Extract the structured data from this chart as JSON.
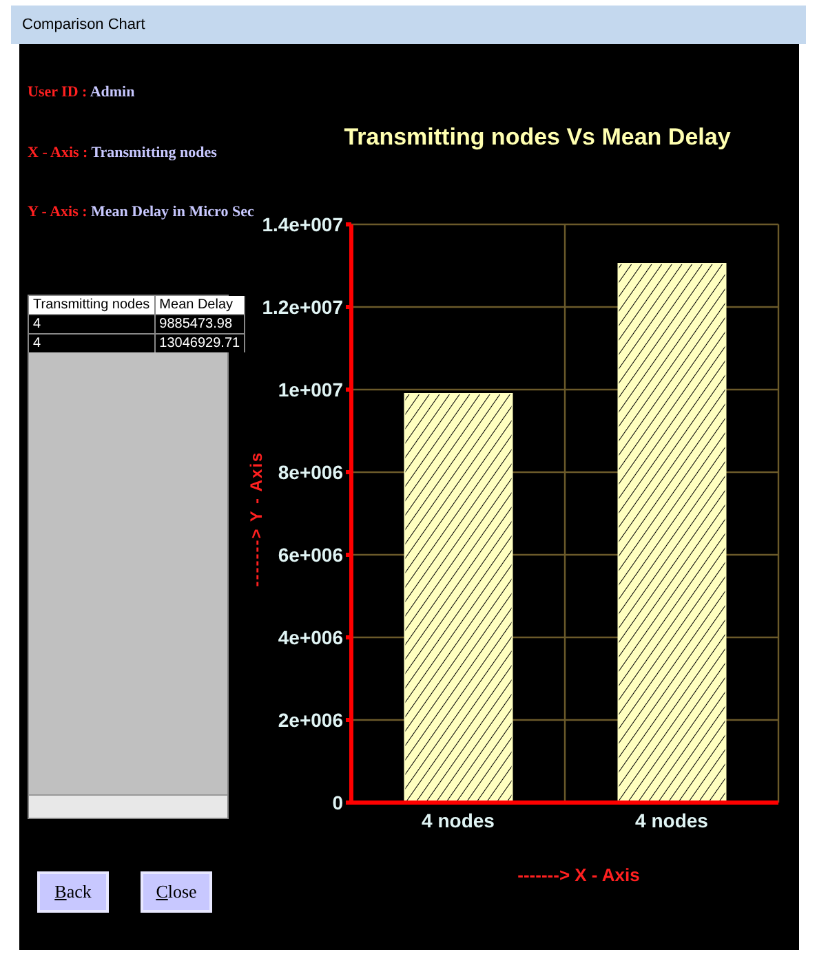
{
  "chart_data": {
    "type": "bar",
    "title": "Transmitting nodes Vs Mean Delay",
    "xlabel": "-------> X - Axis",
    "ylabel": "-------> Y - Axis",
    "categories": [
      "4 nodes",
      "4 nodes"
    ],
    "values": [
      9900000,
      13050000
    ],
    "color": "#ffffc0",
    "ylim": [
      0,
      14000000
    ],
    "yticks": [
      0,
      {
        "value": 2000000,
        "label": "2e+006"
      },
      {
        "value": 4000000,
        "label": "4e+006"
      },
      {
        "value": 6000000,
        "label": "6e+006"
      },
      {
        "value": 8000000,
        "label": "8e+006"
      },
      {
        "value": 10000000,
        "label": "1e+007"
      },
      {
        "value": 12000000,
        "label": "1.2e+007"
      },
      {
        "value": 14000000,
        "label": "1.4e+007"
      }
    ],
    "grid": true,
    "annotations": [
      "Comparison Chart",
      "User ID : Admin",
      "X - Axis : Transmitting nodes",
      "Y - Axis : Mean Delay in Micro Sec",
      "Transmitting nodes",
      "Mean Delay",
      "4",
      "9885473.98",
      "4",
      "13046929.71",
      "Back",
      "Close"
    ]
  }
}
